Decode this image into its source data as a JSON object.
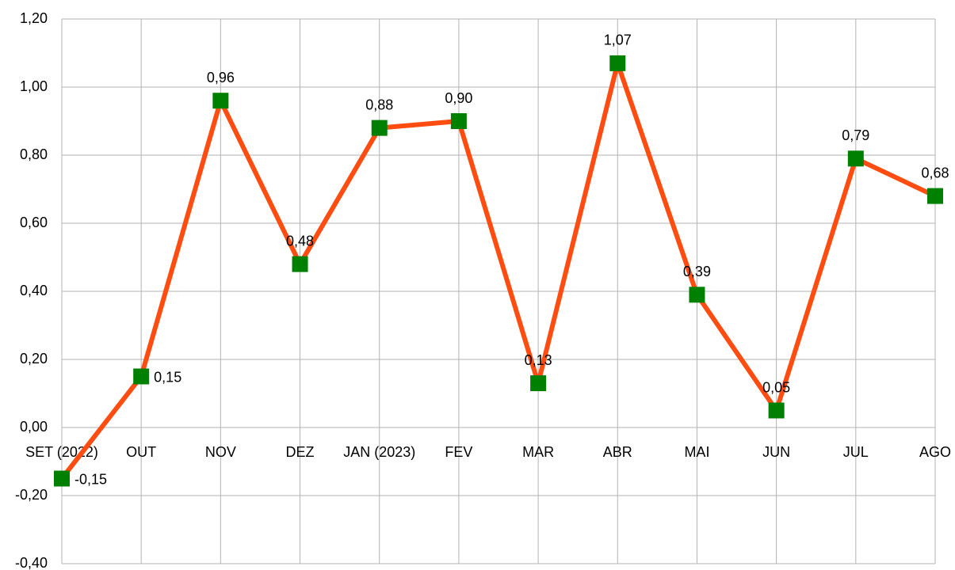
{
  "chart_data": {
    "type": "line",
    "categories": [
      "SET (2022)",
      "OUT",
      "NOV",
      "DEZ",
      "JAN (2023)",
      "FEV",
      "MAR",
      "ABR",
      "MAI",
      "JUN",
      "JUL",
      "AGO"
    ],
    "series": [
      {
        "color": "#ff4d12",
        "marker_color": "#008000",
        "values": [
          -0.15,
          0.15,
          0.96,
          0.48,
          0.88,
          0.9,
          0.13,
          1.07,
          0.39,
          0.05,
          0.79,
          0.68
        ],
        "value_labels": [
          "-0,15",
          "0,15",
          "0,96",
          "0,48",
          "0,88",
          "0,90",
          "0,13",
          "1,07",
          "0,39",
          "0,05",
          "0,79",
          "0,68"
        ]
      }
    ],
    "ylim": [
      -0.4,
      1.2
    ],
    "yticks": [
      {
        "value": -0.4,
        "label": "-0,40"
      },
      {
        "value": -0.2,
        "label": "-0,20"
      },
      {
        "value": 0,
        "label": "0,00"
      },
      {
        "value": 0.2,
        "label": "0,20"
      },
      {
        "value": 0.4,
        "label": "0,40"
      },
      {
        "value": 0.6,
        "label": "0,60"
      },
      {
        "value": 0.8,
        "label": "0,80"
      },
      {
        "value": 1.0,
        "label": "1,00"
      },
      {
        "value": 1.2,
        "label": "1,20"
      }
    ],
    "grid": true
  }
}
